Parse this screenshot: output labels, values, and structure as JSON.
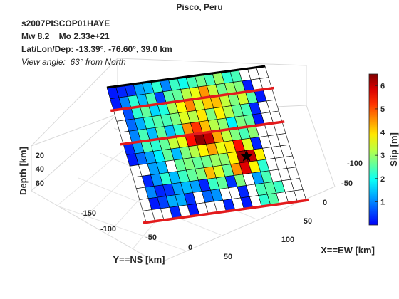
{
  "chart_data": {
    "type": "heatmap",
    "title": "Pisco, Peru",
    "event_id": "s2007PISCOP01HAYE",
    "mw_line": "Mw 8.2    Mo 2.33e+21",
    "latlon_line": "Lat/Lon/Dep: -13.39°, -76.60°, 39.0 km",
    "view_line": "View angle:  63° from North",
    "xlabel": "X==EW [km]",
    "ylabel": "Y==NS [km]",
    "zlabel": "Depth [km]",
    "colorbar_label": "Slip [m]",
    "colormap": "jet",
    "color_range": [
      0,
      6.5
    ],
    "colorbar_ticks": [
      "1",
      "2",
      "3",
      "4",
      "5",
      "6"
    ],
    "y_ticks": [
      "-150",
      "-100",
      "-50",
      "0",
      "50"
    ],
    "x_ticks": [
      "-100",
      "-50",
      "0",
      "50",
      "100"
    ],
    "z_ticks": [
      "20",
      "40",
      "60"
    ],
    "grid": true,
    "epicenter_marker": "star",
    "fault_rows": 12,
    "fault_cols": 18,
    "slip": [
      [
        0.2,
        0.3,
        0.4,
        1.2,
        1.4,
        2.2,
        1.0,
        2.3,
        2.0,
        2.4,
        2.7,
        2.4,
        3.0,
        2.2,
        2.4,
        0.0,
        0.0,
        0.0
      ],
      [
        0.2,
        1.0,
        2.2,
        1.4,
        2.4,
        0.5,
        2.5,
        2.6,
        3.2,
        3.6,
        4.5,
        3.3,
        2.7,
        3.0,
        2.8,
        0.2,
        0.0,
        0.0
      ],
      [
        0.0,
        0.6,
        2.2,
        2.6,
        1.6,
        2.1,
        3.1,
        3.7,
        4.6,
        3.4,
        4.1,
        4.2,
        3.3,
        2.8,
        3.4,
        2.5,
        0.2,
        0.0
      ],
      [
        0.0,
        0.8,
        1.3,
        2.2,
        2.5,
        2.4,
        2.8,
        3.5,
        3.2,
        3.9,
        2.8,
        3.8,
        3.2,
        2.6,
        2.4,
        0.3,
        0.0,
        0.0
      ],
      [
        0.0,
        1.0,
        2.4,
        1.4,
        2.6,
        1.4,
        2.2,
        4.5,
        5.2,
        4.2,
        3.2,
        2.9,
        1.8,
        2.8,
        2.6,
        0.2,
        0.0,
        0.0
      ],
      [
        0.3,
        1.2,
        2.4,
        2.2,
        2.6,
        3.3,
        3.6,
        5.5,
        6.4,
        6.0,
        4.4,
        3.3,
        2.8,
        2.4,
        2.9,
        0.0,
        0.0,
        0.0
      ],
      [
        0.2,
        0.8,
        1.2,
        1.8,
        2.6,
        1.4,
        2.8,
        3.2,
        3.8,
        4.4,
        3.6,
        3.9,
        5.5,
        3.5,
        0.3,
        0.0,
        0.0,
        0.0
      ],
      [
        0.0,
        0.0,
        1.2,
        1.4,
        0.0,
        2.6,
        2.8,
        2.6,
        2.7,
        3.0,
        2.9,
        3.8,
        6.3,
        6.0,
        3.8,
        0.0,
        0.0,
        0.0
      ],
      [
        0.0,
        0.3,
        1.1,
        2.2,
        1.4,
        2.3,
        2.6,
        2.8,
        4.2,
        3.5,
        2.6,
        4.5,
        5.8,
        3.8,
        2.2,
        0.0,
        0.0,
        0.0
      ],
      [
        0.0,
        1.0,
        0.3,
        0.4,
        1.2,
        1.4,
        1.2,
        0.3,
        2.3,
        2.6,
        0.4,
        2.8,
        0.0,
        1.2,
        2.4,
        0.0,
        0.0,
        0.0
      ],
      [
        0.0,
        0.2,
        0.5,
        1.3,
        1.3,
        0.4,
        0.0,
        0.8,
        1.1,
        0.0,
        0.0,
        0.3,
        0.0,
        2.4,
        2.5,
        2.3,
        0.0,
        0.0
      ],
      [
        0.0,
        0.0,
        0.0,
        0.3,
        0.0,
        0.2,
        0.0,
        0.0,
        0.0,
        0.3,
        0.0,
        0.2,
        0.0,
        2.2,
        2.5,
        0.0,
        0.0,
        0.0
      ]
    ],
    "epicenter_cell": [
      7.5,
      13.0
    ],
    "segment_boundaries_along_dip": [
      0,
      2,
      5,
      12
    ]
  }
}
